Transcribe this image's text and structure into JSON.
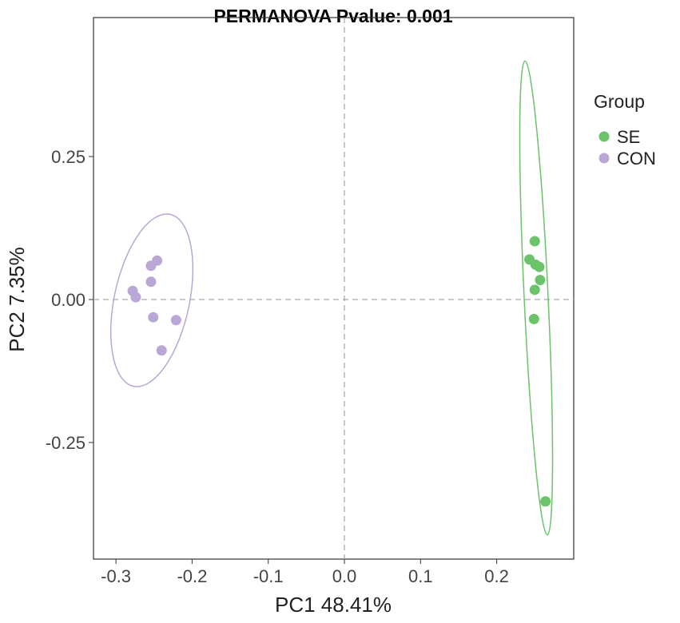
{
  "chart_data": {
    "type": "scatter",
    "title": "PERMANOVA Pvalue: 0.001",
    "xlabel": "PC1 48.41%",
    "ylabel": "PC2 7.35%",
    "xlim": [
      -0.33,
      0.3
    ],
    "ylim": [
      -0.45,
      0.495
    ],
    "xticks": [
      -0.3,
      -0.2,
      -0.1,
      0.0,
      0.1,
      0.2
    ],
    "xtick_labels": [
      "-0.3",
      "-0.2",
      "-0.1",
      "0.0",
      "0.1",
      "0.2"
    ],
    "yticks": [
      0.25,
      0.0,
      -0.25
    ],
    "ytick_labels": [
      "0.25",
      "0.00",
      "-0.25"
    ],
    "grid": false,
    "reference_lines": {
      "x": 0,
      "y": 0
    },
    "legend": {
      "title": "Group",
      "placement": "right"
    },
    "series": [
      {
        "name": "SE",
        "color": "#6cc36a",
        "points": [
          [
            0.25,
            0.102
          ],
          [
            0.243,
            0.07
          ],
          [
            0.251,
            0.061
          ],
          [
            0.256,
            0.057
          ],
          [
            0.257,
            0.034
          ],
          [
            0.25,
            0.017
          ],
          [
            0.249,
            -0.034
          ],
          [
            0.264,
            -0.353
          ]
        ]
      },
      {
        "name": "CON",
        "color": "#bba7d6",
        "points": [
          [
            -0.246,
            0.068
          ],
          [
            -0.254,
            0.059
          ],
          [
            -0.254,
            0.031
          ],
          [
            -0.278,
            0.015
          ],
          [
            -0.274,
            0.004
          ],
          [
            -0.251,
            -0.031
          ],
          [
            -0.221,
            -0.036
          ],
          [
            -0.24,
            -0.089
          ]
        ]
      }
    ]
  }
}
